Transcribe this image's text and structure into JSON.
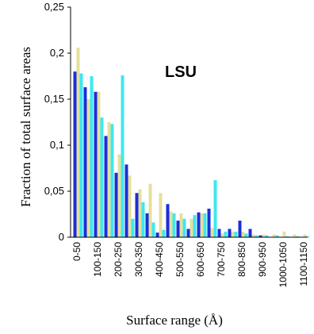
{
  "chart_data": {
    "type": "bar",
    "title": "",
    "annotation": "LSU",
    "xlabel": "Surface range (Å)",
    "ylabel": "Fraction of total  surface areas",
    "ylim": [
      0,
      0.25
    ],
    "y_ticks": [
      "0",
      "0,05",
      "0,1",
      "0,15",
      "0,2",
      "0,25"
    ],
    "y_tick_values": [
      0,
      0.05,
      0.1,
      0.15,
      0.2,
      0.25
    ],
    "x_tick_labels": [
      "0-50",
      "100-150",
      "200-250",
      "300-350",
      "400-450",
      "500-550",
      "600-650",
      "700-750",
      "800-850",
      "900-950",
      "1000-1050",
      "1100-1150"
    ],
    "categories": [
      "0-50",
      "50-100",
      "100-150",
      "150-200",
      "200-250",
      "250-300",
      "300-350",
      "350-400",
      "400-450",
      "450-500",
      "500-550",
      "550-600",
      "600-650",
      "650-700",
      "700-750",
      "750-800",
      "800-850",
      "850-900",
      "900-950",
      "950-1000",
      "1000-1050",
      "1050-1100",
      "1100-1150"
    ],
    "series": [
      {
        "values": [
          0.18,
          0.163,
          0.158,
          0.11,
          0.07,
          0.079,
          0.048,
          0.026,
          0.005,
          0.036,
          0.018,
          0.009,
          0.027,
          0.031,
          0.009,
          0.009,
          0.018,
          0.009,
          0.002,
          0.0,
          0.0,
          0.0,
          0.0
        ]
      },
      {
        "values": [
          0.206,
          0.15,
          0.158,
          0.125,
          0.09,
          0.067,
          0.052,
          0.058,
          0.048,
          0.028,
          0.026,
          0.02,
          0.026,
          0.01,
          0.004,
          0.006,
          0.006,
          0.003,
          0.003,
          0.003,
          0.006,
          0.003,
          0.003
        ]
      },
      {
        "values": [
          0.178,
          0.175,
          0.13,
          0.123,
          0.176,
          0.02,
          0.038,
          0.016,
          0.008,
          0.026,
          0.02,
          0.024,
          0.026,
          0.062,
          0.006,
          0.006,
          0.004,
          0.002,
          0.002,
          0.002,
          0.001,
          0.001,
          0.001
        ]
      }
    ],
    "colors": [
      "#1a2fd8",
      "#e6df9c",
      "#3ee8f0"
    ],
    "grid": false,
    "legend": "none"
  }
}
